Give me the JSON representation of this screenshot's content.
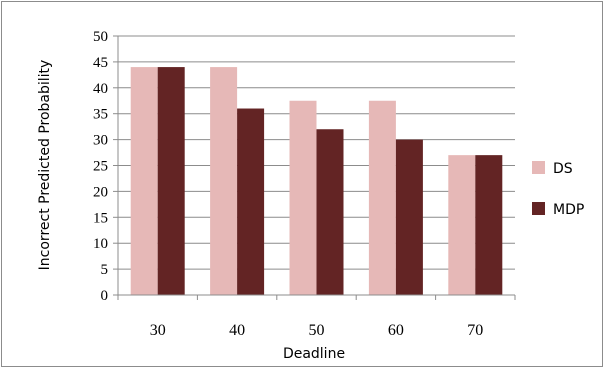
{
  "chart_data": {
    "type": "bar",
    "categories": [
      "30",
      "40",
      "50",
      "60",
      "70"
    ],
    "series": [
      {
        "name": "DS",
        "values": [
          44,
          44,
          37.5,
          37.5,
          27
        ],
        "color": "#e6b8b7"
      },
      {
        "name": "MDP",
        "values": [
          44,
          36,
          32,
          30,
          27
        ],
        "color": "#632424"
      }
    ],
    "xlabel": "Deadline",
    "ylabel": "Incorrect Predicted Probability",
    "ylim": [
      0,
      50
    ],
    "yticks": [
      0,
      5,
      10,
      15,
      20,
      25,
      30,
      35,
      40,
      45,
      50
    ],
    "grid": true,
    "legend_position": "right"
  }
}
